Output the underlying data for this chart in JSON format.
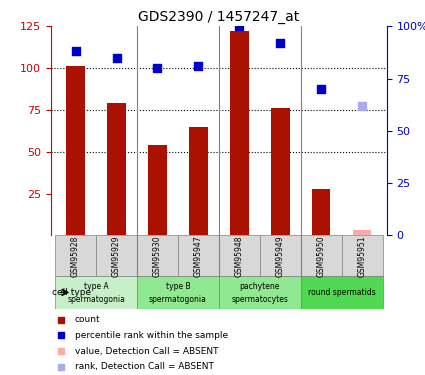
{
  "title": "GDS2390 / 1457247_at",
  "samples": [
    "GSM95928",
    "GSM95929",
    "GSM95930",
    "GSM95947",
    "GSM95948",
    "GSM95949",
    "GSM95950",
    "GSM95951"
  ],
  "counts": [
    101,
    79,
    54,
    65,
    122,
    76,
    28,
    null
  ],
  "counts_absent": [
    null,
    null,
    null,
    null,
    null,
    null,
    null,
    3
  ],
  "percentiles": [
    88,
    85,
    80,
    81,
    100,
    92,
    70,
    null
  ],
  "percentiles_absent": [
    null,
    null,
    null,
    null,
    null,
    null,
    null,
    62
  ],
  "cell_type_bands": [
    {
      "start": 0,
      "end": 1,
      "color": "#c8f0c8",
      "line1": "type A",
      "line2": "spermatogonia"
    },
    {
      "start": 2,
      "end": 3,
      "color": "#90e890",
      "line1": "type B",
      "line2": "spermatogonia"
    },
    {
      "start": 4,
      "end": 5,
      "color": "#90e890",
      "line1": "pachytene",
      "line2": "spermatocytes"
    },
    {
      "start": 6,
      "end": 7,
      "color": "#50d850",
      "line1": "round spermatids",
      "line2": ""
    }
  ],
  "ylim_left": [
    0,
    125
  ],
  "ylim_right": [
    0,
    100
  ],
  "yticks_left": [
    25,
    50,
    75,
    100,
    125
  ],
  "yticks_right": [
    0,
    25,
    50,
    75,
    100
  ],
  "ytick_labels_right": [
    "0",
    "25",
    "50",
    "75",
    "100%"
  ],
  "bar_color": "#aa1100",
  "bar_absent_color": "#ffaaaa",
  "dot_color": "#0000cc",
  "dot_absent_color": "#aaaaee",
  "bg_color": "#ffffff",
  "left_axis_color": "#cc0000",
  "right_axis_color": "#0000cc",
  "cell_sample_bg": "#d8d8d8",
  "group_boundaries": [
    1.5,
    3.5,
    5.5
  ],
  "grid_yticks": [
    50,
    75,
    100
  ],
  "legend_items": [
    {
      "color": "#aa1100",
      "label": "count"
    },
    {
      "color": "#0000cc",
      "label": "percentile rank within the sample"
    },
    {
      "color": "#ffaaaa",
      "label": "value, Detection Call = ABSENT"
    },
    {
      "color": "#aaaaee",
      "label": "rank, Detection Call = ABSENT"
    }
  ]
}
